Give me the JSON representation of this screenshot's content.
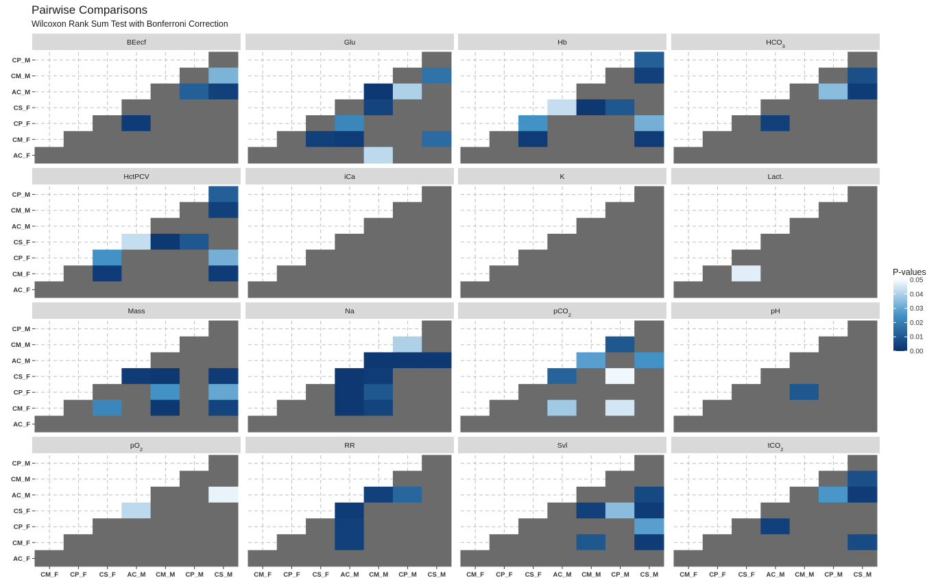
{
  "title": "Pairwise Comparisons",
  "subtitle": "Wilcoxon Rank Sum Test with Bonferroni Correction",
  "chart_data": {
    "type": "heatmap",
    "title": "Pairwise Comparisons",
    "subtitle": "Wilcoxon Rank Sum Test with Bonferroni Correction",
    "x_categories": [
      "CM_F",
      "CP_F",
      "CS_F",
      "AC_M",
      "CM_M",
      "CP_M",
      "CS_M"
    ],
    "y_categories": [
      "CP_M",
      "CM_M",
      "AC_M",
      "CS_F",
      "CP_F",
      "CM_F",
      "AC_F"
    ],
    "legend": {
      "title": "P-values",
      "ticks": [
        "0.05",
        "0.04",
        "0.03",
        "0.02",
        "0.01",
        "0.00"
      ],
      "min": 0,
      "max": 0.05,
      "position": "right"
    },
    "colors": {
      "non_significant": "#6b6b6b",
      "low": "#08306b",
      "mid": "#4292c6",
      "high": "#f7fbff",
      "strip": "#d9d9d9",
      "grid": "#bdbdbd"
    },
    "grid": true,
    "panels": [
      {
        "name": "BEecf",
        "label_main": "BEecf",
        "label_sub": "",
        "cells": [
          [
            "AC_M",
            "CP_F",
            0.003
          ],
          [
            "CP_M",
            "AC_M",
            0.012
          ],
          [
            "CS_M",
            "AC_M",
            0.004
          ],
          [
            "CS_M",
            "CM_M",
            0.033
          ]
        ]
      },
      {
        "name": "Glu",
        "label_main": "Glu",
        "label_sub": "",
        "cells": [
          [
            "CS_F",
            "CM_F",
            0.004
          ],
          [
            "AC_M",
            "CM_F",
            0.003
          ],
          [
            "AC_M",
            "CP_F",
            0.022
          ],
          [
            "CM_M",
            "AC_M",
            0.002
          ],
          [
            "CM_M",
            "CS_F",
            0.005
          ],
          [
            "CM_M",
            "AC_F",
            0.042
          ],
          [
            "CP_M",
            "AC_M",
            0.04
          ],
          [
            "CS_M",
            "CM_M",
            0.017
          ],
          [
            "CS_M",
            "CM_F",
            0.015
          ]
        ]
      },
      {
        "name": "Hb",
        "label_main": "Hb",
        "label_sub": "",
        "cells": [
          [
            "CS_F",
            "CM_F",
            0.003
          ],
          [
            "CS_F",
            "CP_F",
            0.025
          ],
          [
            "AC_M",
            "CS_F",
            0.043
          ],
          [
            "CM_M",
            "CS_F",
            0.002
          ],
          [
            "CP_M",
            "CS_F",
            0.01
          ],
          [
            "CS_M",
            "CP_M",
            0.012
          ],
          [
            "CS_M",
            "CM_M",
            0.004
          ],
          [
            "CS_M",
            "CP_F",
            0.032
          ],
          [
            "CS_M",
            "CM_F",
            0.003
          ]
        ]
      },
      {
        "name": "HCO3",
        "label_main": "HCO",
        "label_sub": "3",
        "cells": [
          [
            "AC_M",
            "CP_F",
            0.004
          ],
          [
            "CP_M",
            "AC_M",
            0.035
          ],
          [
            "CS_M",
            "CM_M",
            0.008
          ],
          [
            "CS_M",
            "AC_M",
            0.003
          ]
        ]
      },
      {
        "name": "HctPCV",
        "label_main": "HctPCV",
        "label_sub": "",
        "cells": [
          [
            "CS_F",
            "CM_F",
            0.003
          ],
          [
            "CS_F",
            "CP_F",
            0.025
          ],
          [
            "AC_M",
            "CS_F",
            0.043
          ],
          [
            "CM_M",
            "CS_F",
            0.002
          ],
          [
            "CP_M",
            "CS_F",
            0.01
          ],
          [
            "CS_M",
            "CP_M",
            0.012
          ],
          [
            "CS_M",
            "CM_M",
            0.004
          ],
          [
            "CS_M",
            "CP_F",
            0.032
          ],
          [
            "CS_M",
            "CM_F",
            0.003
          ]
        ]
      },
      {
        "name": "iCa",
        "label_main": "iCa",
        "label_sub": "",
        "cells": []
      },
      {
        "name": "K",
        "label_main": "K",
        "label_sub": "",
        "cells": []
      },
      {
        "name": "Lact.",
        "label_main": "Lact.",
        "label_sub": "",
        "cells": [
          [
            "CS_F",
            "CM_F",
            0.047
          ]
        ]
      },
      {
        "name": "Mass",
        "label_main": "Mass",
        "label_sub": "",
        "cells": [
          [
            "CS_F",
            "CM_F",
            0.022
          ],
          [
            "AC_M",
            "CS_F",
            0.003
          ],
          [
            "CM_M",
            "CS_F",
            0.002
          ],
          [
            "CM_M",
            "CP_F",
            0.025
          ],
          [
            "CM_M",
            "CM_F",
            0.002
          ],
          [
            "CS_M",
            "CS_F",
            0.003
          ],
          [
            "CS_M",
            "CP_F",
            0.03
          ],
          [
            "CS_M",
            "CM_F",
            0.005
          ]
        ]
      },
      {
        "name": "Na",
        "label_main": "Na",
        "label_sub": "",
        "cells": [
          [
            "AC_M",
            "CS_F",
            0.002
          ],
          [
            "AC_M",
            "CP_F",
            0.002
          ],
          [
            "AC_M",
            "CM_F",
            0.002
          ],
          [
            "CM_M",
            "AC_M",
            0.002
          ],
          [
            "CM_M",
            "CS_F",
            0.003
          ],
          [
            "CM_M",
            "CP_F",
            0.01
          ],
          [
            "CM_M",
            "CM_F",
            0.005
          ],
          [
            "CP_M",
            "AC_M",
            0.002
          ],
          [
            "CP_M",
            "CM_M",
            0.04
          ],
          [
            "CS_M",
            "AC_M",
            0.002
          ]
        ]
      },
      {
        "name": "pCO2",
        "label_main": "pCO",
        "label_sub": "2",
        "cells": [
          [
            "AC_M",
            "CS_F",
            0.013
          ],
          [
            "AC_M",
            "CM_F",
            0.038
          ],
          [
            "CM_M",
            "AC_M",
            0.028
          ],
          [
            "CP_M",
            "CM_M",
            0.01
          ],
          [
            "CP_M",
            "CS_F",
            0.049
          ],
          [
            "CP_M",
            "CM_F",
            0.045
          ],
          [
            "CS_M",
            "AC_M",
            0.025
          ]
        ]
      },
      {
        "name": "pH",
        "label_main": "pH",
        "label_sub": "",
        "cells": [
          [
            "CM_M",
            "CP_F",
            0.01
          ]
        ]
      },
      {
        "name": "pO2",
        "label_main": "pO",
        "label_sub": "2",
        "cells": [
          [
            "AC_M",
            "CS_F",
            0.042
          ],
          [
            "CS_M",
            "AC_M",
            0.048
          ]
        ]
      },
      {
        "name": "RR",
        "label_main": "RR",
        "label_sub": "",
        "cells": [
          [
            "AC_M",
            "CS_F",
            0.003
          ],
          [
            "AC_M",
            "CP_F",
            0.004
          ],
          [
            "AC_M",
            "CM_F",
            0.004
          ],
          [
            "CM_M",
            "AC_M",
            0.004
          ],
          [
            "CP_M",
            "AC_M",
            0.014
          ]
        ]
      },
      {
        "name": "Svl",
        "label_main": "Svl",
        "label_sub": "",
        "cells": [
          [
            "CM_M",
            "CS_F",
            0.004
          ],
          [
            "CM_M",
            "CM_F",
            0.01
          ],
          [
            "CP_M",
            "CS_F",
            0.035
          ],
          [
            "CS_M",
            "AC_M",
            0.006
          ],
          [
            "CS_M",
            "CS_F",
            0.003
          ],
          [
            "CS_M",
            "CP_F",
            0.028
          ],
          [
            "CS_M",
            "CM_F",
            0.003
          ]
        ]
      },
      {
        "name": "tCO2",
        "label_main": "tCO",
        "label_sub": "2",
        "cells": [
          [
            "AC_M",
            "CP_F",
            0.004
          ],
          [
            "CP_M",
            "AC_M",
            0.026
          ],
          [
            "CS_M",
            "CM_M",
            0.008
          ],
          [
            "CS_M",
            "AC_M",
            0.003
          ],
          [
            "CS_M",
            "CM_F",
            0.007
          ]
        ]
      }
    ]
  }
}
